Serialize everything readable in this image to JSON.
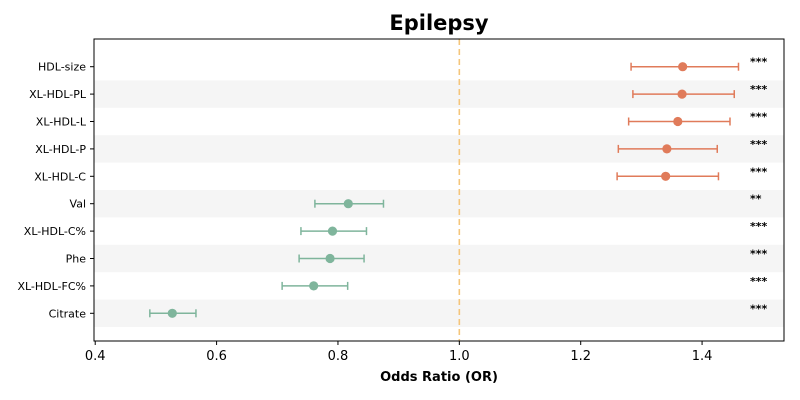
{
  "chart_data": {
    "type": "scatter",
    "title": "Epilepsy",
    "xlabel": "Odds Ratio (OR)",
    "ylabel": "",
    "xlim": [
      0.398,
      1.535
    ],
    "xticks": [
      0.4,
      0.6,
      0.8,
      1.0,
      1.2,
      1.4
    ],
    "xtick_labels": [
      "0.4",
      "0.6",
      "0.8",
      "1.0",
      "1.2",
      "1.4"
    ],
    "reference_line": 1.0,
    "grid": false,
    "alternating_row_shading": true,
    "colors": {
      "positive": "#e07b5a",
      "negative": "#7fb59c",
      "reference": "#f5c57a",
      "stripe": "#f5f5f5"
    },
    "rows": [
      {
        "label": "HDL-size",
        "or": 1.368,
        "ci_low": 1.283,
        "ci_high": 1.46,
        "sig": "***"
      },
      {
        "label": "XL-HDL-PL",
        "or": 1.367,
        "ci_low": 1.286,
        "ci_high": 1.453,
        "sig": "***"
      },
      {
        "label": "XL-HDL-L",
        "or": 1.36,
        "ci_low": 1.279,
        "ci_high": 1.446,
        "sig": "***"
      },
      {
        "label": "XL-HDL-P",
        "or": 1.342,
        "ci_low": 1.262,
        "ci_high": 1.425,
        "sig": "***"
      },
      {
        "label": "XL-HDL-C",
        "or": 1.34,
        "ci_low": 1.26,
        "ci_high": 1.427,
        "sig": "***"
      },
      {
        "label": "Val",
        "or": 0.817,
        "ci_low": 0.762,
        "ci_high": 0.875,
        "sig": "**"
      },
      {
        "label": "XL-HDL-C%",
        "or": 0.791,
        "ci_low": 0.739,
        "ci_high": 0.847,
        "sig": "***"
      },
      {
        "label": "Phe",
        "or": 0.787,
        "ci_low": 0.736,
        "ci_high": 0.843,
        "sig": "***"
      },
      {
        "label": "XL-HDL-FC%",
        "or": 0.76,
        "ci_low": 0.708,
        "ci_high": 0.816,
        "sig": "***"
      },
      {
        "label": "Citrate",
        "or": 0.527,
        "ci_low": 0.49,
        "ci_high": 0.566,
        "sig": "***"
      }
    ]
  }
}
